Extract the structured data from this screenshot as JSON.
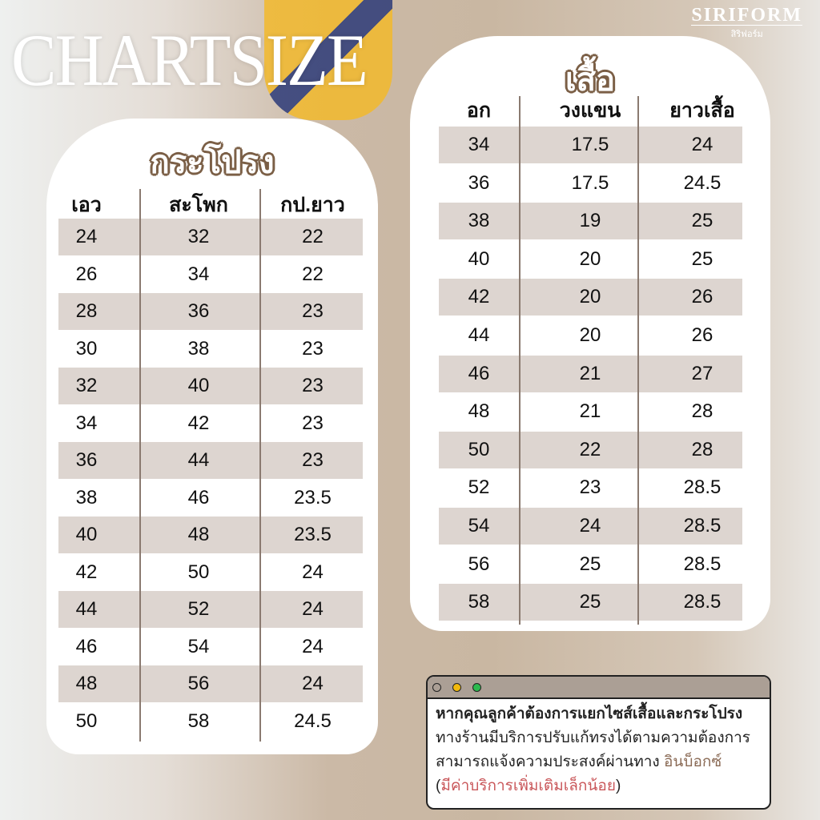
{
  "title": "CHARTSIZE",
  "brand": {
    "name": "SIRIFORM",
    "sub": "สิริฟอร์ม"
  },
  "skirt": {
    "title": "กระโปรง",
    "headers": [
      "เอว",
      "สะโพก",
      "กป.ยาว"
    ],
    "rows": [
      [
        "24",
        "32",
        "22"
      ],
      [
        "26",
        "34",
        "22"
      ],
      [
        "28",
        "36",
        "23"
      ],
      [
        "30",
        "38",
        "23"
      ],
      [
        "32",
        "40",
        "23"
      ],
      [
        "34",
        "42",
        "23"
      ],
      [
        "36",
        "44",
        "23"
      ],
      [
        "38",
        "46",
        "23.5"
      ],
      [
        "40",
        "48",
        "23.5"
      ],
      [
        "42",
        "50",
        "24"
      ],
      [
        "44",
        "52",
        "24"
      ],
      [
        "46",
        "54",
        "24"
      ],
      [
        "48",
        "56",
        "24"
      ],
      [
        "50",
        "58",
        "24.5"
      ]
    ]
  },
  "shirt": {
    "title": "เสื้อ",
    "headers": [
      "อก",
      "วงแขน",
      "ยาวเสื้อ"
    ],
    "rows": [
      [
        "34",
        "17.5",
        "24"
      ],
      [
        "36",
        "17.5",
        "24.5"
      ],
      [
        "38",
        "19",
        "25"
      ],
      [
        "40",
        "20",
        "25"
      ],
      [
        "42",
        "20",
        "26"
      ],
      [
        "44",
        "20",
        "26"
      ],
      [
        "46",
        "21",
        "27"
      ],
      [
        "48",
        "21",
        "28"
      ],
      [
        "50",
        "22",
        "28"
      ],
      [
        "52",
        "23",
        "28.5"
      ],
      [
        "54",
        "24",
        "28.5"
      ],
      [
        "56",
        "25",
        "28.5"
      ],
      [
        "58",
        "25",
        "28.5"
      ]
    ]
  },
  "note": {
    "line1": "หากคุณลูกค้าต้องการแยกไซส์เสื้อและกระโปรง",
    "line2": "ทางร้านมีบริการปรับแก้ทรงได้ตามความต้องการ",
    "line3": "สามารถแจ้งความประสงค์ผ่านทาง ",
    "line3_link": "อินบ็อกซ์",
    "line4_open": "(",
    "line4_red": "มีค่าบริการเพิ่มเติมเล็กน้อย",
    "line4_close": ")"
  },
  "colors": {
    "accent": "#7b5f46",
    "row_shade": "#ddd5d0",
    "highlight_red": "#c9575a",
    "dots": [
      "#ab9f95",
      "#f2b90c",
      "#2dba4e"
    ]
  }
}
